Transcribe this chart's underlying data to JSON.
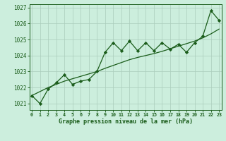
{
  "xlabel": "Graphe pression niveau de la mer (hPa)",
  "background_color": "#cceedd",
  "grid_color": "#aaccbb",
  "line_color": "#1a5c1a",
  "marker_color": "#1a5c1a",
  "text_color": "#1a5c1a",
  "ylim": [
    1020.6,
    1027.2
  ],
  "xlim": [
    -0.3,
    23.3
  ],
  "yticks": [
    1021,
    1022,
    1023,
    1024,
    1025,
    1026,
    1027
  ],
  "xticks": [
    0,
    1,
    2,
    3,
    4,
    5,
    6,
    7,
    8,
    9,
    10,
    11,
    12,
    13,
    14,
    15,
    16,
    17,
    18,
    19,
    20,
    21,
    22,
    23
  ],
  "xtick_labels": [
    "0",
    "1",
    "2",
    "3",
    "4",
    "5",
    "6",
    "7",
    "8",
    "9",
    "10",
    "11",
    "12",
    "13",
    "14",
    "15",
    "16",
    "17",
    "18",
    "19",
    "20",
    "21",
    "22",
    "23"
  ],
  "trend_data": [
    1021.5,
    1021.75,
    1022.0,
    1022.2,
    1022.4,
    1022.55,
    1022.7,
    1022.85,
    1023.0,
    1023.2,
    1023.38,
    1023.56,
    1023.74,
    1023.88,
    1024.0,
    1024.12,
    1024.26,
    1024.42,
    1024.58,
    1024.74,
    1024.9,
    1025.1,
    1025.35,
    1025.65
  ],
  "pressure_x": [
    0,
    1,
    2,
    3,
    4,
    5,
    6,
    7,
    8,
    9,
    10,
    11,
    12,
    13,
    14,
    15,
    16,
    17,
    18,
    19,
    20,
    21,
    22,
    23
  ],
  "pressure_y": [
    1021.5,
    1021.0,
    1021.9,
    1022.3,
    1022.8,
    1022.2,
    1022.4,
    1022.5,
    1023.0,
    1024.2,
    1024.8,
    1024.3,
    1024.9,
    1024.3,
    1024.8,
    1024.3,
    1024.8,
    1024.4,
    1024.7,
    1024.2,
    1024.8,
    1025.2,
    1026.8,
    1026.2
  ]
}
